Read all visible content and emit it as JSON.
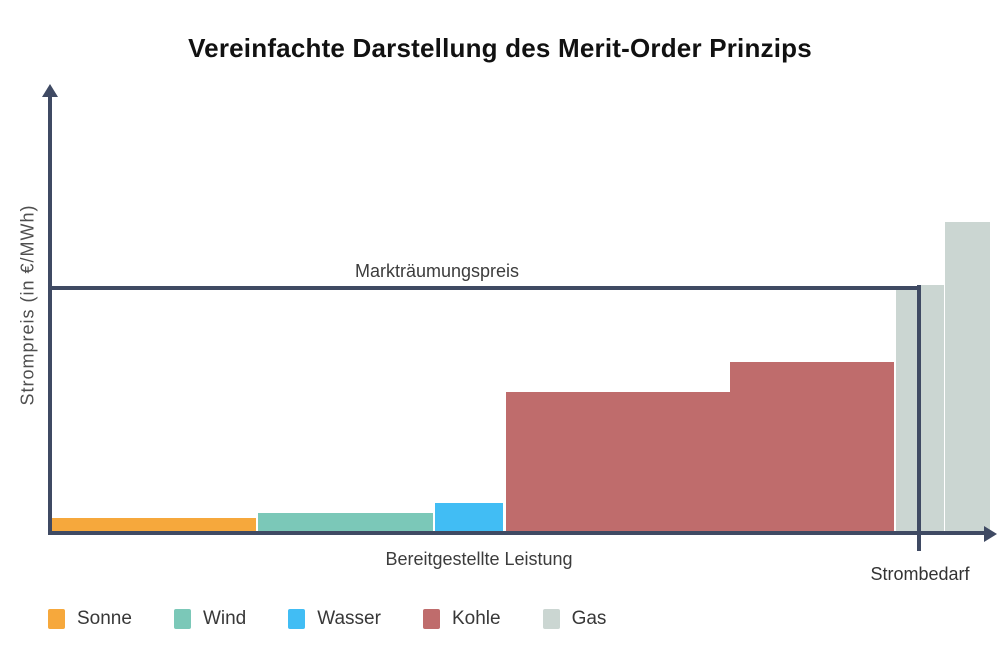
{
  "chart_data": {
    "type": "bar",
    "title": "Vereinfachte Darstellung des Merit-Order Prinzips",
    "xlabel": "Bereitgestellte Leistung",
    "ylabel": "Strompreis (in €/MWh)",
    "clearing_price_label": "Markträumungspreis",
    "demand_label": "Strombedarf",
    "axis_color": "#3f4a63",
    "grid": false,
    "legend_position": "bottom",
    "xlim": [
      0,
      100
    ],
    "ylim": [
      0,
      178
    ],
    "clearing_price": 100,
    "demand_at_capacity": 92.4,
    "segments": [
      {
        "name": "Sonne",
        "color": "#f6a83c",
        "capacity_start": 0,
        "capacity_end": 21.75,
        "price": 7
      },
      {
        "name": "Wind",
        "color": "#7bc8b8",
        "capacity_start": 21.96,
        "capacity_end": 40.62,
        "price": 9
      },
      {
        "name": "Wasser",
        "color": "#41bdf4",
        "capacity_start": 40.83,
        "capacity_end": 48.08,
        "price": 13
      },
      {
        "name": "Kohle",
        "color": "#bf6c6c",
        "capacity_start": 48.4,
        "capacity_end": 72.28,
        "price": 58
      },
      {
        "name": "Kohle",
        "color": "#bf6c6c",
        "capacity_start": 72.28,
        "capacity_end": 89.76,
        "price": 70
      },
      {
        "name": "Gas",
        "color": "#cbd6d2",
        "capacity_start": 89.98,
        "capacity_end": 92.43,
        "price": 100
      },
      {
        "name": "Gas",
        "color": "#cbd6d2",
        "capacity_start": 92.64,
        "capacity_end": 95.09,
        "price": 101
      },
      {
        "name": "Gas",
        "color": "#cbd6d2",
        "capacity_start": 95.2,
        "capacity_end": 100,
        "price": 126.5
      }
    ],
    "legend": [
      {
        "label": "Sonne",
        "color": "#f6a83c"
      },
      {
        "label": "Wind",
        "color": "#7bc8b8"
      },
      {
        "label": "Wasser",
        "color": "#41bdf4"
      },
      {
        "label": "Kohle",
        "color": "#bf6c6c"
      },
      {
        "label": "Gas",
        "color": "#cbd6d2"
      }
    ]
  }
}
